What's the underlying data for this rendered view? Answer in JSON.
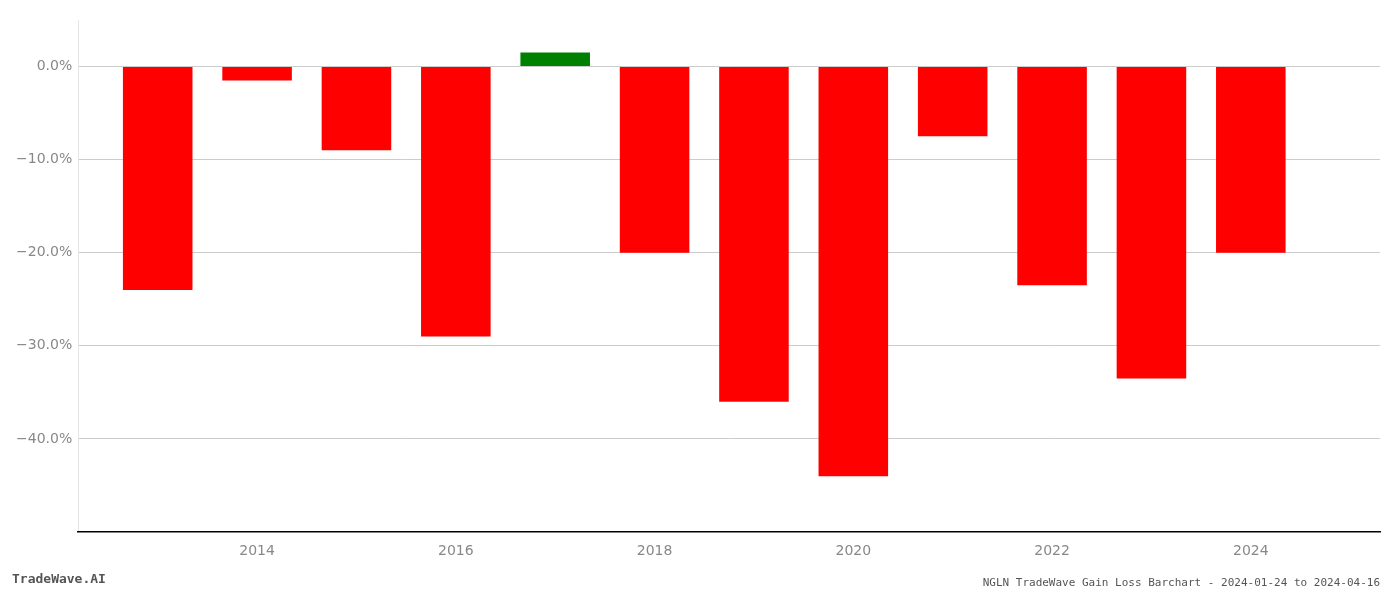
{
  "chart_data": {
    "type": "bar",
    "title": "NGLN TradeWave Gain Loss Barchart - 2024-01-24 to 2024-04-16",
    "annotations": [
      "TradeWave.AI"
    ],
    "x": [
      2013,
      2014,
      2015,
      2016,
      2017,
      2018,
      2019,
      2020,
      2021,
      2022,
      2023,
      2024
    ],
    "values": [
      -24.0,
      -1.5,
      -9.0,
      -29.0,
      1.5,
      -20.0,
      -36.0,
      -44.0,
      -7.5,
      -23.5,
      -33.5,
      -20.0
    ],
    "colors": [
      "#ff0000",
      "#ff0000",
      "#ff0000",
      "#ff0000",
      "#008000",
      "#ff0000",
      "#ff0000",
      "#ff0000",
      "#ff0000",
      "#ff0000",
      "#ff0000",
      "#ff0000"
    ],
    "xlim": [
      2012.2,
      2025.3
    ],
    "xticks": [
      2014,
      2016,
      2018,
      2020,
      2022,
      2024
    ],
    "ylim": [
      -50,
      5
    ],
    "yticks": [
      {
        "value": 0.0,
        "label": "0.0%"
      },
      {
        "value": -10.0,
        "label": "−10.0%"
      },
      {
        "value": -20.0,
        "label": "−20.0%"
      },
      {
        "value": -30.0,
        "label": "−30.0%"
      },
      {
        "value": -40.0,
        "label": "−40.0%"
      }
    ],
    "grid": true
  }
}
